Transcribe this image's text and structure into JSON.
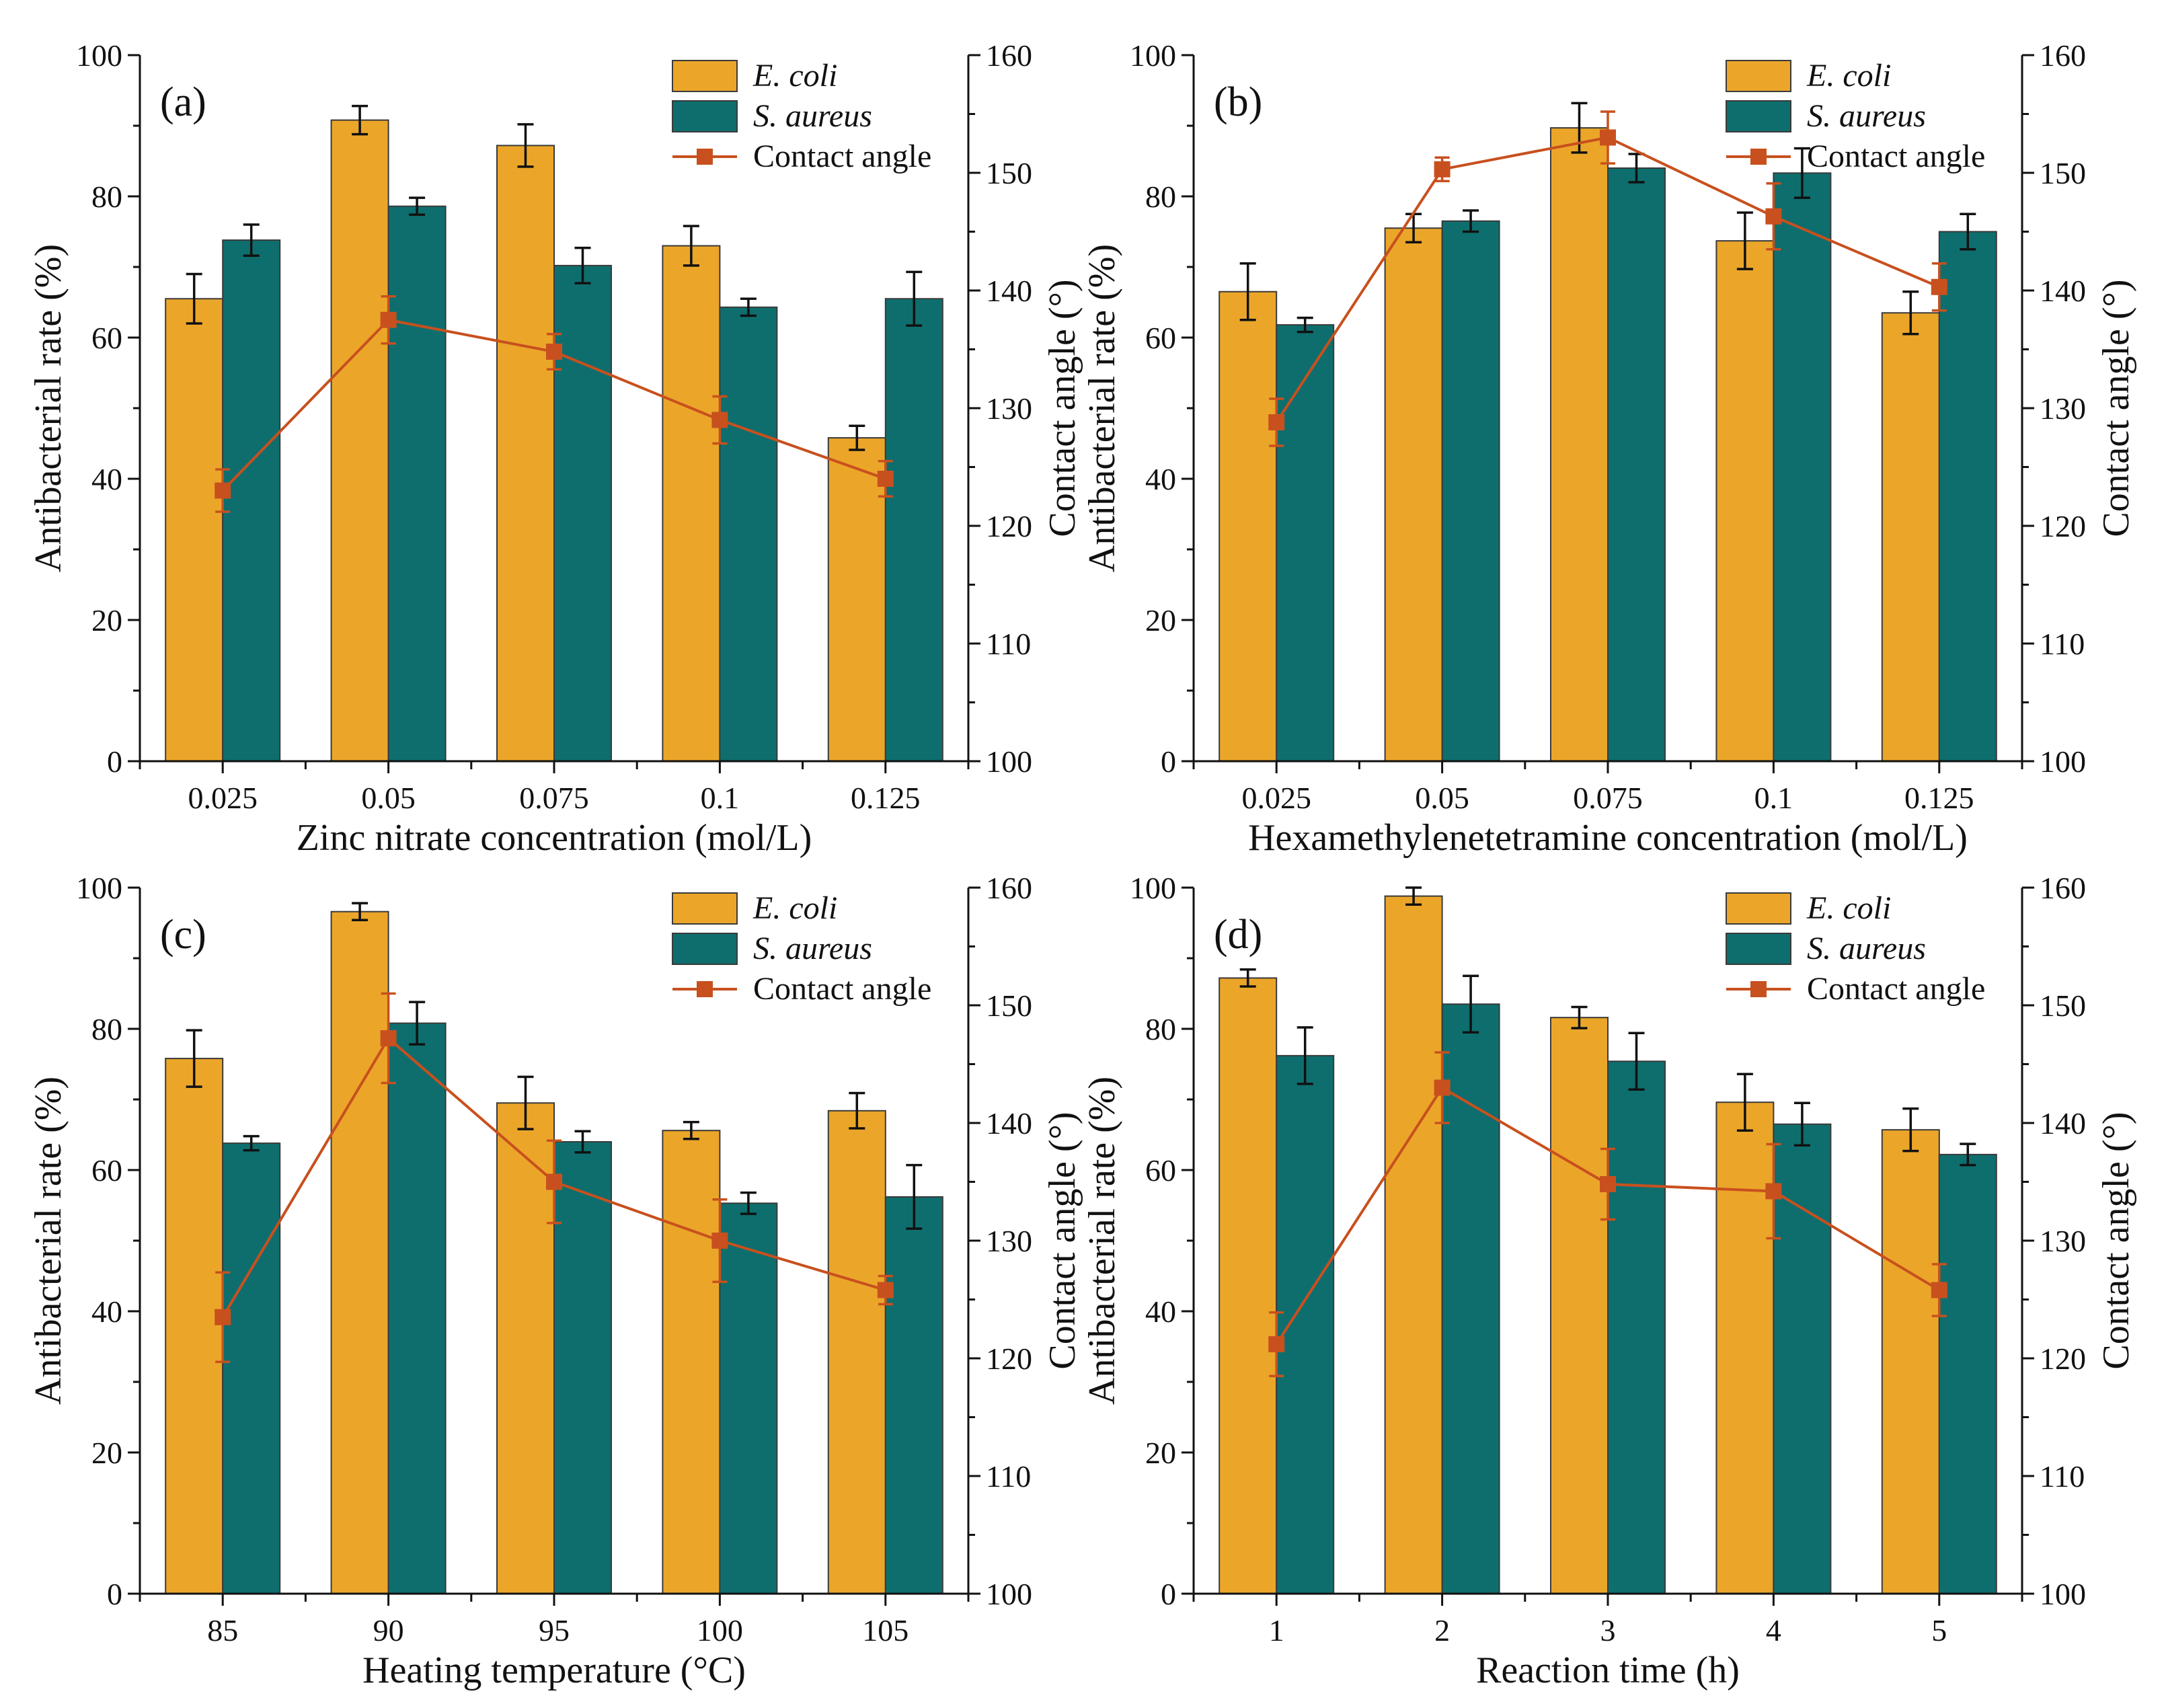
{
  "figure": {
    "colors": {
      "ecoli": "#EBA62A",
      "saureus": "#0E6E6E",
      "contact_angle": "#C8501E",
      "axis": "#111111"
    }
  },
  "chart_data": [
    {
      "type": "bar",
      "panel": "(a)",
      "title": "",
      "xlabel": "Zinc nitrate concentration (mol/L)",
      "ylabel": "Antibacterial rate (%)",
      "y2label": "Contact angle (°)",
      "ylim": [
        0,
        100
      ],
      "y2lim": [
        100,
        160
      ],
      "yticks": [
        "0",
        "20",
        "40",
        "60",
        "80",
        "100"
      ],
      "y2ticks": [
        "100",
        "110",
        "120",
        "130",
        "140",
        "150",
        "160"
      ],
      "categories": [
        "0.025",
        "0.05",
        "0.075",
        "0.1",
        "0.125"
      ],
      "legend": [
        "E. coli",
        "S. aureus",
        "Contact angle"
      ],
      "legend_position": "top-right",
      "series": [
        {
          "name": "E. coli",
          "values": [
            65.5,
            90.8,
            87.2,
            73.0,
            45.8
          ],
          "errors": [
            3.5,
            2.0,
            3.0,
            2.8,
            1.7
          ]
        },
        {
          "name": "S. aureus",
          "values": [
            73.8,
            78.6,
            70.2,
            64.3,
            65.5
          ],
          "errors": [
            2.2,
            1.2,
            2.5,
            1.2,
            3.8
          ]
        }
      ],
      "line_series": {
        "name": "Contact angle",
        "axis": "right",
        "values": [
          123.0,
          137.5,
          134.8,
          129.0,
          124.0
        ],
        "errors": [
          1.8,
          2.0,
          1.5,
          2.0,
          1.5
        ]
      }
    },
    {
      "type": "bar",
      "panel": "(b)",
      "title": "",
      "xlabel": "Hexamethylenetetramine concentration (mol/L)",
      "ylabel": "Antibacterial rate (%)",
      "y2label": "Contact angle (°)",
      "ylim": [
        0,
        100
      ],
      "y2lim": [
        100,
        160
      ],
      "yticks": [
        "0",
        "20",
        "40",
        "60",
        "80",
        "100"
      ],
      "y2ticks": [
        "100",
        "110",
        "120",
        "130",
        "140",
        "150",
        "160"
      ],
      "categories": [
        "0.025",
        "0.05",
        "0.075",
        "0.1",
        "0.125"
      ],
      "legend": [
        "E. coli",
        "S. aureus",
        "Contact angle"
      ],
      "legend_position": "top-right",
      "series": [
        {
          "name": "E. coli",
          "values": [
            66.5,
            75.5,
            89.7,
            73.7,
            63.5
          ],
          "errors": [
            4.0,
            2.0,
            3.5,
            4.0,
            3.0
          ]
        },
        {
          "name": "S. aureus",
          "values": [
            61.8,
            76.5,
            84.0,
            83.3,
            75.0
          ],
          "errors": [
            1.0,
            1.5,
            2.0,
            3.5,
            2.5
          ]
        }
      ],
      "line_series": {
        "name": "Contact angle",
        "axis": "right",
        "values": [
          128.8,
          150.3,
          153.0,
          146.3,
          140.3
        ],
        "errors": [
          2.0,
          1.0,
          2.2,
          2.8,
          2.0
        ]
      }
    },
    {
      "type": "bar",
      "panel": "(c)",
      "title": "",
      "xlabel": "Heating temperature (°C)",
      "ylabel": "Antibacterial rate (%)",
      "y2label": "Contact angle (°)",
      "ylim": [
        0,
        100
      ],
      "y2lim": [
        100,
        160
      ],
      "yticks": [
        "0",
        "20",
        "40",
        "60",
        "80",
        "100"
      ],
      "y2ticks": [
        "100",
        "110",
        "120",
        "130",
        "140",
        "150",
        "160"
      ],
      "categories": [
        "85",
        "90",
        "95",
        "100",
        "105"
      ],
      "legend": [
        "E. coli",
        "S. aureus",
        "Contact angle"
      ],
      "legend_position": "top-right",
      "series": [
        {
          "name": "E. coli",
          "values": [
            75.8,
            96.6,
            69.5,
            65.6,
            68.4
          ],
          "errors": [
            4.0,
            1.2,
            3.7,
            1.2,
            2.5
          ]
        },
        {
          "name": "S. aureus",
          "values": [
            63.8,
            80.8,
            64.0,
            55.3,
            56.2
          ],
          "errors": [
            1.0,
            3.0,
            1.5,
            1.5,
            4.5
          ]
        }
      ],
      "line_series": {
        "name": "Contact angle",
        "axis": "right",
        "values": [
          123.5,
          147.2,
          135.0,
          130.0,
          125.8
        ],
        "errors": [
          3.8,
          3.8,
          3.5,
          3.5,
          1.2
        ]
      }
    },
    {
      "type": "bar",
      "panel": "(d)",
      "title": "",
      "xlabel": "Reaction time (h)",
      "ylabel": "Antibacterial rate (%)",
      "y2label": "Contact angle (°)",
      "ylim": [
        0,
        100
      ],
      "y2lim": [
        100,
        160
      ],
      "yticks": [
        "0",
        "20",
        "40",
        "60",
        "80",
        "100"
      ],
      "y2ticks": [
        "100",
        "110",
        "120",
        "130",
        "140",
        "150",
        "160"
      ],
      "categories": [
        "1",
        "2",
        "3",
        "4",
        "5"
      ],
      "legend": [
        "E. coli",
        "S. aureus",
        "Contact angle"
      ],
      "legend_position": "top-right",
      "series": [
        {
          "name": "E. coli",
          "values": [
            87.2,
            98.8,
            81.6,
            69.6,
            65.7
          ],
          "errors": [
            1.2,
            1.2,
            1.5,
            4.0,
            3.0
          ]
        },
        {
          "name": "S. aureus",
          "values": [
            76.2,
            83.5,
            75.4,
            66.5,
            62.2
          ],
          "errors": [
            4.0,
            4.0,
            4.0,
            3.0,
            1.5
          ]
        }
      ],
      "line_series": {
        "name": "Contact angle",
        "axis": "right",
        "values": [
          121.2,
          143.0,
          134.8,
          134.2,
          125.8
        ],
        "errors": [
          2.7,
          3.0,
          3.0,
          4.0,
          2.2
        ]
      }
    }
  ]
}
